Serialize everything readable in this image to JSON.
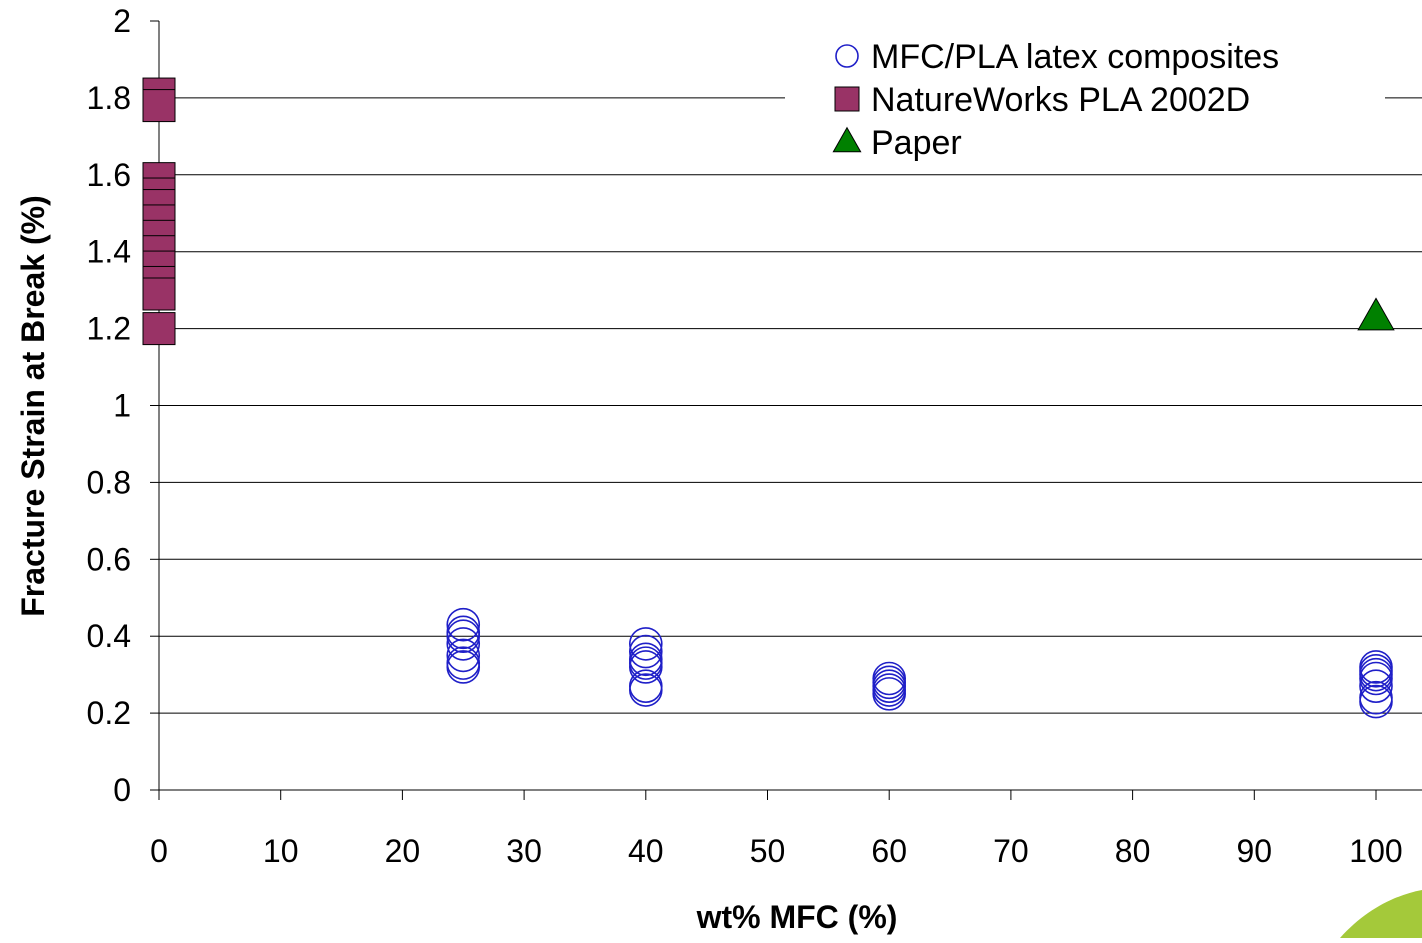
{
  "chart_data": {
    "type": "scatter",
    "title": "",
    "xlabel": "wt% MFC (%)",
    "ylabel": "Fracture Strain at Break (%)",
    "xlim": [
      0,
      100
    ],
    "ylim": [
      0,
      2
    ],
    "x_ticks": [
      "0",
      "10",
      "20",
      "30",
      "40",
      "50",
      "60",
      "70",
      "80",
      "90",
      "100"
    ],
    "y_ticks": [
      "0",
      "0.2",
      "0.4",
      "0.6",
      "0.8",
      "1",
      "1.2",
      "1.4",
      "1.6",
      "1.8",
      "2"
    ],
    "grid": "horizontal major gridlines",
    "legend_position": "top-right",
    "series": [
      {
        "name": "MFC/PLA latex composites",
        "marker": "open-circle",
        "color": "#1f1fc8",
        "points": [
          {
            "x": 25,
            "y": 0.43
          },
          {
            "x": 25,
            "y": 0.41
          },
          {
            "x": 25,
            "y": 0.4
          },
          {
            "x": 25,
            "y": 0.38
          },
          {
            "x": 25,
            "y": 0.35
          },
          {
            "x": 25,
            "y": 0.33
          },
          {
            "x": 25,
            "y": 0.32
          },
          {
            "x": 40,
            "y": 0.38
          },
          {
            "x": 40,
            "y": 0.36
          },
          {
            "x": 40,
            "y": 0.34
          },
          {
            "x": 40,
            "y": 0.33
          },
          {
            "x": 40,
            "y": 0.32
          },
          {
            "x": 40,
            "y": 0.27
          },
          {
            "x": 40,
            "y": 0.26
          },
          {
            "x": 60,
            "y": 0.29
          },
          {
            "x": 60,
            "y": 0.28
          },
          {
            "x": 60,
            "y": 0.27
          },
          {
            "x": 60,
            "y": 0.26
          },
          {
            "x": 60,
            "y": 0.25
          },
          {
            "x": 100,
            "y": 0.32
          },
          {
            "x": 100,
            "y": 0.31
          },
          {
            "x": 100,
            "y": 0.3
          },
          {
            "x": 100,
            "y": 0.29
          },
          {
            "x": 100,
            "y": 0.27
          },
          {
            "x": 100,
            "y": 0.24
          },
          {
            "x": 100,
            "y": 0.23
          }
        ]
      },
      {
        "name": "NatureWorks PLA 2002D",
        "marker": "filled-square",
        "color": "#993366",
        "points": [
          {
            "x": 0,
            "y": 1.81
          },
          {
            "x": 0,
            "y": 1.78
          },
          {
            "x": 0,
            "y": 1.59
          },
          {
            "x": 0,
            "y": 1.55
          },
          {
            "x": 0,
            "y": 1.52
          },
          {
            "x": 0,
            "y": 1.48
          },
          {
            "x": 0,
            "y": 1.44
          },
          {
            "x": 0,
            "y": 1.4
          },
          {
            "x": 0,
            "y": 1.36
          },
          {
            "x": 0,
            "y": 1.32
          },
          {
            "x": 0,
            "y": 1.29
          },
          {
            "x": 0,
            "y": 1.2
          }
        ]
      },
      {
        "name": "Paper",
        "marker": "filled-triangle",
        "color": "#008000",
        "points": [
          {
            "x": 100,
            "y": 1.23
          }
        ]
      }
    ]
  }
}
